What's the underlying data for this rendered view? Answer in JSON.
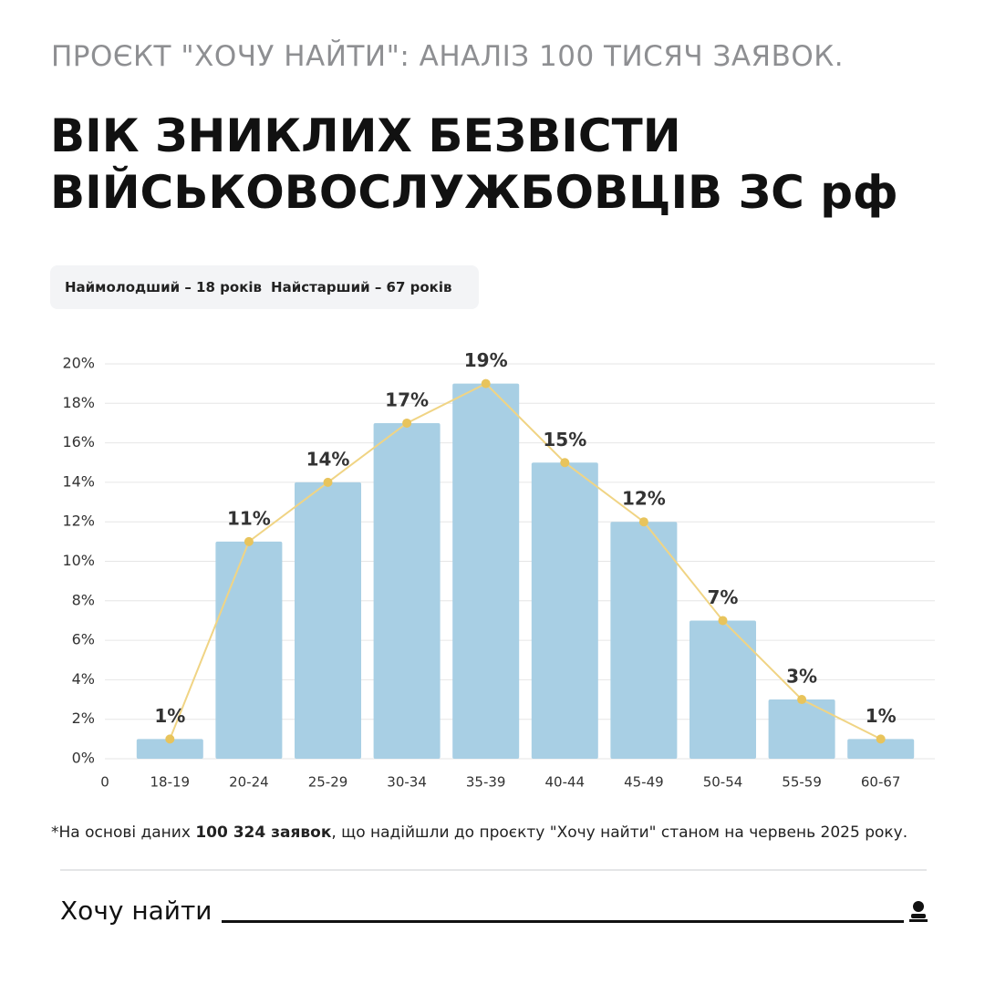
{
  "subtitle": "ПРОЄКТ \"ХОЧУ НАЙТИ\": АНАЛІЗ 100 ТИСЯЧ ЗАЯВОК.",
  "title_lines": [
    "ВІК ЗНИКЛИХ БЕЗВІСТИ",
    "ВІЙСЬКОВОСЛУЖБОВЦІВ ЗС рф"
  ],
  "info": [
    "Наймолодший – 18 років",
    "Найстарший – 67 років"
  ],
  "chart_data": {
    "type": "bar",
    "categories": [
      "18-19",
      "20-24",
      "25-29",
      "30-34",
      "35-39",
      "40-44",
      "45-49",
      "50-54",
      "55-59",
      "60-67"
    ],
    "values": [
      1,
      11,
      14,
      17,
      19,
      15,
      12,
      7,
      3,
      1
    ],
    "value_labels": [
      "1%",
      "11%",
      "14%",
      "17%",
      "19%",
      "15%",
      "12%",
      "7%",
      "3%",
      "1%"
    ],
    "color": "#a8cfe4",
    "line_color": "#f0d484",
    "ylim": [
      0,
      20
    ],
    "yticks": [
      {
        "value": 0,
        "label": "0%"
      },
      {
        "value": 2,
        "label": "2%"
      },
      {
        "value": 4,
        "label": "4%"
      },
      {
        "value": 6,
        "label": "6%"
      },
      {
        "value": 8,
        "label": "8%"
      },
      {
        "value": 10,
        "label": "10%"
      },
      {
        "value": 12,
        "label": "12%"
      },
      {
        "value": 14,
        "label": "14%"
      },
      {
        "value": 16,
        "label": "16%"
      },
      {
        "value": 18,
        "label": "18%"
      },
      {
        "value": 20,
        "label": "20%"
      }
    ],
    "x_origin_label": "0",
    "grid": true
  },
  "footnote": {
    "marker": "*",
    "parts": [
      "На основі даних ",
      "100 324 заявок",
      ", що надійшли до проєкту \"Хочу найти\" станом на червень 2025 року."
    ]
  },
  "footer": "Хочу найти"
}
